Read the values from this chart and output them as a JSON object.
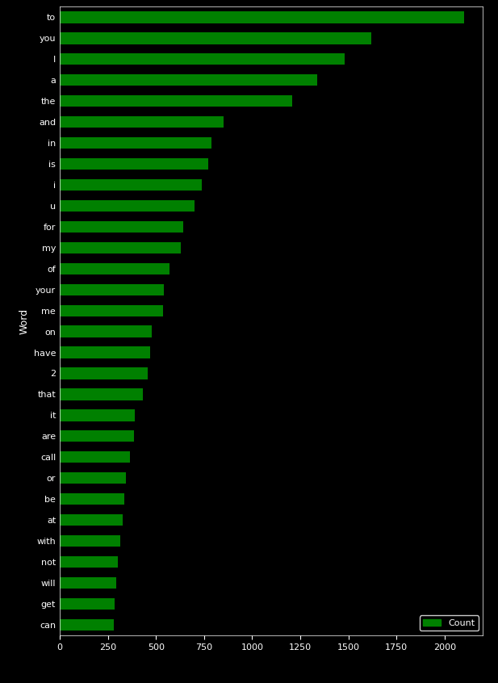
{
  "words": [
    "to",
    "you",
    "I",
    "a",
    "the",
    "and",
    "in",
    "is",
    "i",
    "u",
    "for",
    "my",
    "of",
    "your",
    "me",
    "on",
    "have",
    "2",
    "that",
    "it",
    "are",
    "call",
    "or",
    "be",
    "at",
    "with",
    "not",
    "will",
    "get",
    "can"
  ],
  "counts": [
    2100,
    1620,
    1480,
    1340,
    1210,
    850,
    790,
    770,
    740,
    700,
    640,
    630,
    570,
    540,
    535,
    480,
    470,
    455,
    430,
    390,
    385,
    365,
    345,
    335,
    325,
    315,
    300,
    295,
    285,
    280
  ],
  "bar_color": "#008000",
  "background_color": "#000000",
  "text_color": "#ffffff",
  "ylabel": "Word",
  "xlabel_vals": [
    0,
    250,
    500,
    750,
    1000,
    1250,
    1500,
    1750,
    2000
  ],
  "legend_label": "Count",
  "figsize": [
    6.17,
    8.46
  ],
  "dpi": 100,
  "bar_height": 0.55
}
